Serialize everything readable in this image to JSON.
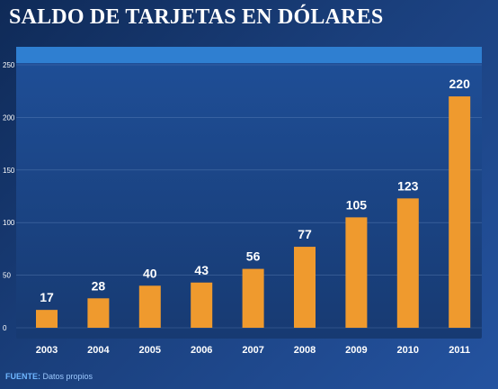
{
  "title": "SALDO DE TARJETAS EN DÓLARES",
  "source": {
    "label": "FUENTE:",
    "text": "Datos propios"
  },
  "colors": {
    "bar": "#ef9a2e",
    "panel_top": "#1f4f98",
    "panel_bottom": "#173a72",
    "header_band": "#2f7fd1",
    "grid": "#6f8fc4",
    "axis_text": "#ffffff"
  },
  "chart_data": {
    "type": "bar",
    "title": "SALDO DE TARJETAS EN DÓLARES",
    "xlabel": "",
    "ylabel": "",
    "categories": [
      "2003",
      "2004",
      "2005",
      "2006",
      "2007",
      "2008",
      "2009",
      "2010",
      "2011"
    ],
    "values": [
      17,
      28,
      40,
      43,
      56,
      77,
      105,
      123,
      220
    ],
    "data_labels": [
      "17",
      "28",
      "40",
      "43",
      "56",
      "77",
      "105",
      "123",
      "220"
    ],
    "ylim": [
      0,
      250
    ],
    "yticks": [
      0,
      50,
      100,
      150,
      200,
      250
    ],
    "ytick_labels": [
      "0",
      "50",
      "100",
      "150",
      "200",
      "250"
    ],
    "grid": true,
    "legend": "none"
  }
}
